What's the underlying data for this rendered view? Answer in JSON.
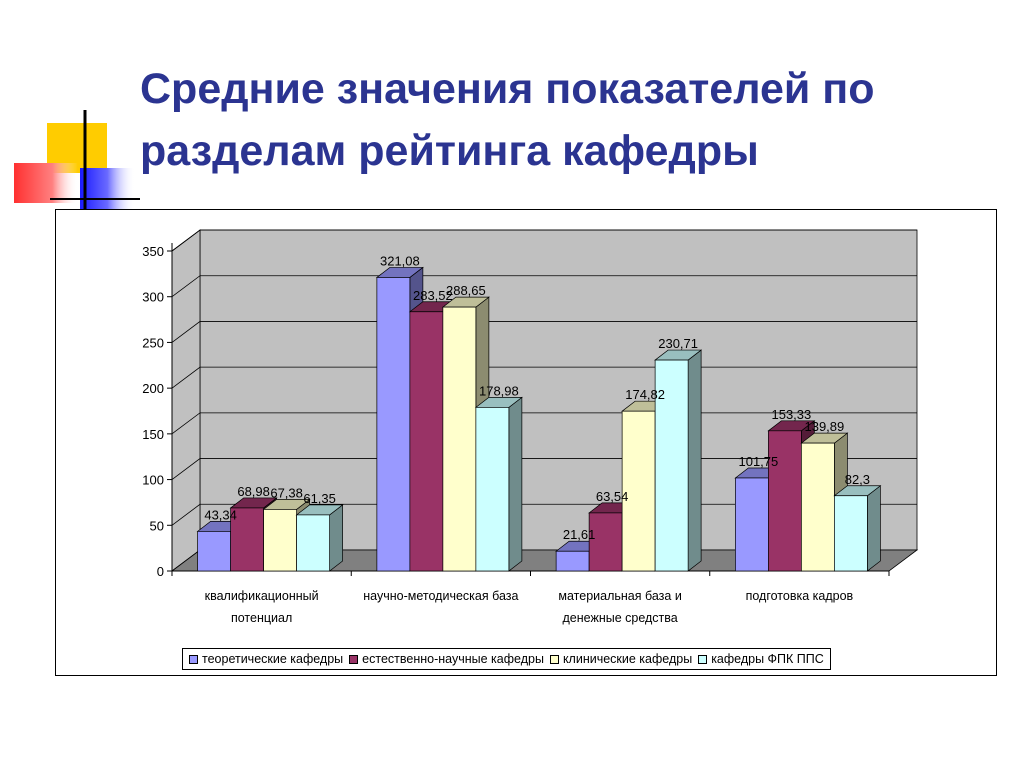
{
  "slide": {
    "title_line1": "Средние значения показателей по",
    "title_line2": "разделам рейтинга кафедры"
  },
  "colors": {
    "title": "#2b3491",
    "wall": "#c0c0c0",
    "floor": "#808080",
    "series": [
      "#9999ff",
      "#993366",
      "#ffffcc",
      "#ccffff"
    ]
  },
  "chart_data": {
    "type": "bar",
    "categories": [
      [
        "квалификационный",
        "потенциал"
      ],
      [
        "научно-методическая база"
      ],
      [
        "материальная база и",
        "денежные средства"
      ],
      [
        "подготовка кадров"
      ]
    ],
    "series": [
      {
        "name": "теоретические кафедры",
        "values": [
          43.34,
          321.08,
          21.61,
          101.75
        ],
        "labels": [
          "43,34",
          "321,08",
          "21,61",
          "101,75"
        ]
      },
      {
        "name": "естественно-научные кафедры",
        "values": [
          68.98,
          283.52,
          63.54,
          153.33
        ],
        "labels": [
          "68,98",
          "283,52",
          "63,54",
          "153,33"
        ]
      },
      {
        "name": "клинические кафедры",
        "values": [
          67.38,
          288.65,
          174.82,
          139.89
        ],
        "labels": [
          "67,38",
          "288,65",
          "174,82",
          "139,89"
        ]
      },
      {
        "name": "кафедры ФПК ППС",
        "values": [
          61.35,
          178.98,
          230.71,
          82.3
        ],
        "labels": [
          "61,35",
          "178,98",
          "230,71",
          "82,3"
        ]
      }
    ],
    "yticks": [
      "0",
      "50",
      "100",
      "150",
      "200",
      "250",
      "300",
      "350"
    ],
    "ylim": [
      0,
      350
    ],
    "grid": true,
    "three_d": true,
    "legend_position": "bottom"
  }
}
